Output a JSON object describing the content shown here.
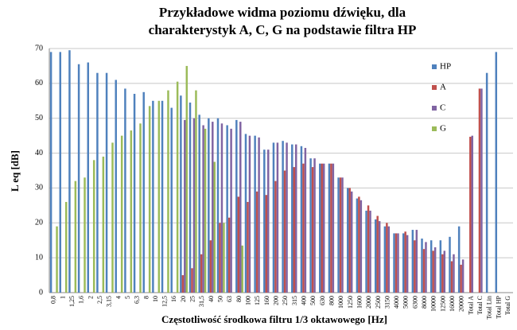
{
  "chart_data": {
    "type": "bar",
    "title": [
      "Przykładowe widma poziomu dźwięku, dla",
      "charakterystyk A, C, G na podstawie filtra HP"
    ],
    "x_label": "Częstotliwość środkowa filtru 1/3 oktawowego [Hz]",
    "y_label": "L eq [dB]",
    "categories": [
      "0,8",
      "1",
      "1,25",
      "1,6",
      "2",
      "2,5",
      "3,15",
      "4",
      "5",
      "6,3",
      "8",
      "10",
      "12,5",
      "16",
      "20",
      "25",
      "31,5",
      "40",
      "50",
      "63",
      "80",
      "100",
      "125",
      "160",
      "200",
      "250",
      "315",
      "400",
      "500",
      "630",
      "800",
      "1000",
      "1250",
      "1600",
      "2000",
      "2500",
      "3150",
      "4000",
      "5000",
      "6300",
      "8000",
      "10000",
      "12500",
      "16000",
      "20000",
      "Total A",
      "Total C",
      "Total Lin",
      "Total HP",
      "Total G"
    ],
    "series": [
      {
        "name": "HP",
        "color": "#4f81bd",
        "values": [
          69,
          69,
          69.5,
          65.5,
          66,
          63,
          63,
          61,
          58.5,
          57,
          57.5,
          55,
          55,
          53,
          56.5,
          54.5,
          51,
          50,
          50,
          48,
          49.5,
          45.5,
          45,
          41,
          43,
          43.5,
          42.5,
          42,
          38.5,
          37,
          37,
          33,
          30,
          27,
          23.5,
          21,
          19,
          17,
          17,
          18,
          15.5,
          15,
          15,
          16,
          19,
          null,
          null,
          63,
          69,
          null
        ]
      },
      {
        "name": "A",
        "color": "#c0504d",
        "values": [
          null,
          null,
          null,
          null,
          null,
          null,
          null,
          null,
          null,
          null,
          null,
          null,
          null,
          null,
          5,
          7,
          11,
          15,
          20,
          21.5,
          27.5,
          26,
          29,
          28,
          32,
          35,
          36,
          37,
          36,
          37,
          37,
          33,
          30,
          27.5,
          25,
          22,
          20,
          17,
          17.5,
          15,
          12.5,
          12,
          11,
          9,
          8,
          44.7,
          58.5,
          null,
          null,
          null
        ]
      },
      {
        "name": "C",
        "color": "#8064a2",
        "values": [
          null,
          null,
          null,
          null,
          null,
          null,
          null,
          null,
          null,
          null,
          null,
          null,
          null,
          null,
          49.5,
          50,
          48,
          49,
          48.5,
          47,
          49,
          45,
          44.5,
          41,
          43,
          43,
          42.5,
          41.5,
          38.5,
          37,
          37,
          33,
          29,
          26.5,
          23.5,
          20.5,
          19,
          17,
          16.5,
          18,
          14.5,
          13,
          12,
          11,
          9.5,
          45,
          58.5,
          null,
          null,
          null
        ]
      },
      {
        "name": "G",
        "color": "#9bbb59",
        "values": [
          19,
          26,
          32,
          33,
          38,
          39,
          43,
          45,
          46.5,
          48.5,
          53.5,
          55,
          58,
          60.5,
          65,
          58,
          47,
          37.5,
          20,
          null,
          13.5,
          null,
          null,
          null,
          null,
          null,
          null,
          null,
          null,
          null,
          null,
          null,
          null,
          null,
          null,
          null,
          null,
          null,
          null,
          null,
          null,
          null,
          null,
          null,
          null,
          null,
          null,
          null,
          null,
          null
        ]
      }
    ],
    "ylim": [
      0,
      70
    ],
    "yticks": [
      0,
      10,
      20,
      30,
      40,
      50,
      60,
      70
    ],
    "grid": true,
    "legend": "upper right"
  }
}
